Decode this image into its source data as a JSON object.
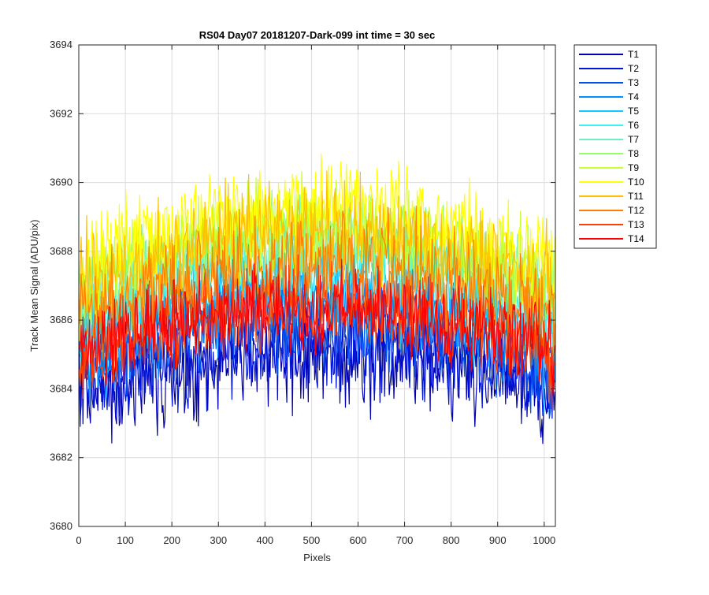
{
  "chart_data": {
    "type": "line",
    "title": "RS04 Day07 20181207-Dark-099 int time = 30 sec",
    "xlabel": "Pixels",
    "ylabel": "Track Mean Signal (ADU/pix)",
    "xlim": [
      0,
      1024
    ],
    "ylim": [
      3680,
      3694
    ],
    "xticks": [
      0,
      100,
      200,
      300,
      400,
      500,
      600,
      700,
      800,
      900,
      1000
    ],
    "yticks": [
      3680,
      3682,
      3684,
      3686,
      3688,
      3690,
      3692,
      3694
    ],
    "grid": true,
    "legend_position": "outside-top-right",
    "x_range": [
      1,
      1024
    ],
    "series": [
      {
        "name": "T1",
        "color": "#0000b3",
        "profile": {
          "center": 3684.9,
          "peak": 3685.0,
          "edge": 3683.8
        },
        "noise": 1.5
      },
      {
        "name": "T2",
        "color": "#0016d6",
        "profile": {
          "center": 3685.3,
          "peak": 3685.3,
          "edge": 3684.0
        },
        "noise": 1.3
      },
      {
        "name": "T3",
        "color": "#0050f0",
        "profile": {
          "center": 3685.8,
          "peak": 3686.0,
          "edge": 3684.5
        },
        "noise": 1.3
      },
      {
        "name": "T4",
        "color": "#0090ff",
        "profile": {
          "center": 3686.4,
          "peak": 3686.6,
          "edge": 3685.0
        },
        "noise": 1.3
      },
      {
        "name": "T5",
        "color": "#10c8ff",
        "profile": {
          "center": 3687.0,
          "peak": 3687.2,
          "edge": 3685.5
        },
        "noise": 1.3
      },
      {
        "name": "T6",
        "color": "#3ff0f0",
        "profile": {
          "center": 3687.6,
          "peak": 3687.8,
          "edge": 3686.0
        },
        "noise": 1.3
      },
      {
        "name": "T7",
        "color": "#70f0c0",
        "profile": {
          "center": 3688.0,
          "peak": 3688.2,
          "edge": 3686.4
        },
        "noise": 1.3
      },
      {
        "name": "T8",
        "color": "#90ff70",
        "profile": {
          "center": 3688.3,
          "peak": 3688.5,
          "edge": 3686.7
        },
        "noise": 1.3
      },
      {
        "name": "T9",
        "color": "#c8ff30",
        "profile": {
          "center": 3688.5,
          "peak": 3688.7,
          "edge": 3686.9
        },
        "noise": 1.3
      },
      {
        "name": "T10",
        "color": "#ffff00",
        "profile": {
          "center": 3689.2,
          "peak": 3689.4,
          "edge": 3687.5
        },
        "noise": 1.4
      },
      {
        "name": "T11",
        "color": "#ffc000",
        "profile": {
          "center": 3688.4,
          "peak": 3688.6,
          "edge": 3686.8
        },
        "noise": 1.4
      },
      {
        "name": "T12",
        "color": "#ff8000",
        "profile": {
          "center": 3687.5,
          "peak": 3687.7,
          "edge": 3686.0
        },
        "noise": 1.4
      },
      {
        "name": "T13",
        "color": "#ff4000",
        "profile": {
          "center": 3686.3,
          "peak": 3686.5,
          "edge": 3684.8
        },
        "noise": 1.4
      },
      {
        "name": "T14",
        "color": "#ff0000",
        "profile": {
          "center": 3686.0,
          "peak": 3686.3,
          "edge": 3685.2
        },
        "noise": 1.2
      }
    ]
  }
}
